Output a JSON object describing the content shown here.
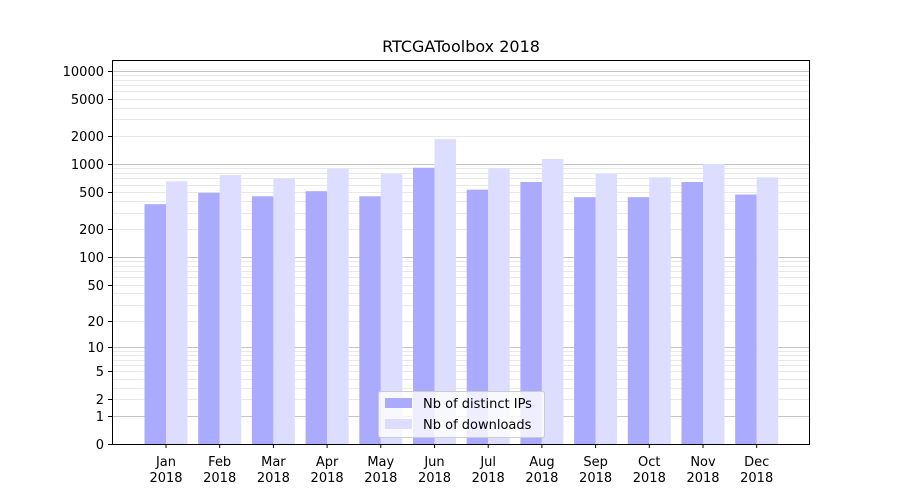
{
  "chart_data": {
    "type": "bar",
    "title": "RTCGAToolbox 2018",
    "xlabel": "",
    "ylabel": "",
    "yscale": "symlog",
    "ylim": [
      0,
      13000
    ],
    "yticks": [
      0,
      1,
      2,
      5,
      10,
      20,
      50,
      100,
      200,
      500,
      1000,
      2000,
      5000,
      10000
    ],
    "ytick_labels": [
      "0",
      "1",
      "2",
      "5",
      "10",
      "20",
      "50",
      "100",
      "200",
      "500",
      "1000",
      "2000",
      "5000",
      "10000"
    ],
    "grid": "horizontal",
    "legend_position": "bottom-center",
    "categories": [
      {
        "month": "Jan",
        "year": "2018"
      },
      {
        "month": "Feb",
        "year": "2018"
      },
      {
        "month": "Mar",
        "year": "2018"
      },
      {
        "month": "Apr",
        "year": "2018"
      },
      {
        "month": "May",
        "year": "2018"
      },
      {
        "month": "Jun",
        "year": "2018"
      },
      {
        "month": "Jul",
        "year": "2018"
      },
      {
        "month": "Aug",
        "year": "2018"
      },
      {
        "month": "Sep",
        "year": "2018"
      },
      {
        "month": "Oct",
        "year": "2018"
      },
      {
        "month": "Nov",
        "year": "2018"
      },
      {
        "month": "Dec",
        "year": "2018"
      }
    ],
    "series": [
      {
        "name": "Nb of distinct IPs",
        "color": "#aaaaff",
        "values": [
          370,
          490,
          450,
          510,
          450,
          910,
          530,
          640,
          440,
          440,
          640,
          470
        ]
      },
      {
        "name": "Nb of downloads",
        "color": "#ddddff",
        "values": [
          650,
          760,
          700,
          890,
          780,
          1850,
          900,
          1130,
          780,
          720,
          1000,
          720
        ]
      }
    ]
  }
}
